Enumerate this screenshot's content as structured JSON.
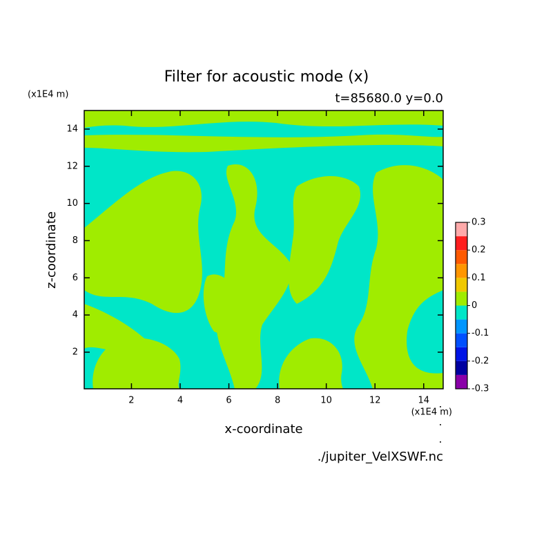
{
  "chart_data": {
    "type": "contour",
    "title": "Filter for acoustic mode (x)",
    "subtitle": "t=85680.0 y=0.0",
    "x_label": "x-coordinate",
    "y_label": "z-coordinate",
    "x_unit": "(x1E4 m)",
    "y_unit": "(x1E4 m)",
    "source": "./jupiter_VelXSWF.nc",
    "xlim": [
      0.06,
      14.8
    ],
    "ylim": [
      0.03,
      15.0
    ],
    "xticks": [
      2,
      4,
      6,
      8,
      10,
      12,
      14
    ],
    "yticks": [
      2,
      4,
      6,
      8,
      10,
      12,
      14
    ],
    "colorbar": {
      "levels": [
        -0.3,
        -0.25,
        -0.2,
        -0.15,
        -0.1,
        -0.05,
        0,
        0.05,
        0.1,
        0.15,
        0.2,
        0.25,
        0.3
      ],
      "colors": [
        "#8a00a8",
        "#0000a0",
        "#0014e6",
        "#0050ff",
        "#0096ff",
        "#00e6c8",
        "#a0ec00",
        "#f0c800",
        "#ff9600",
        "#ff5a00",
        "#ff1e1e",
        "#ffaaaa"
      ],
      "ticks": [
        -0.3,
        -0.2,
        -0.1,
        0,
        0.1,
        0.2,
        0.3
      ]
    }
  }
}
